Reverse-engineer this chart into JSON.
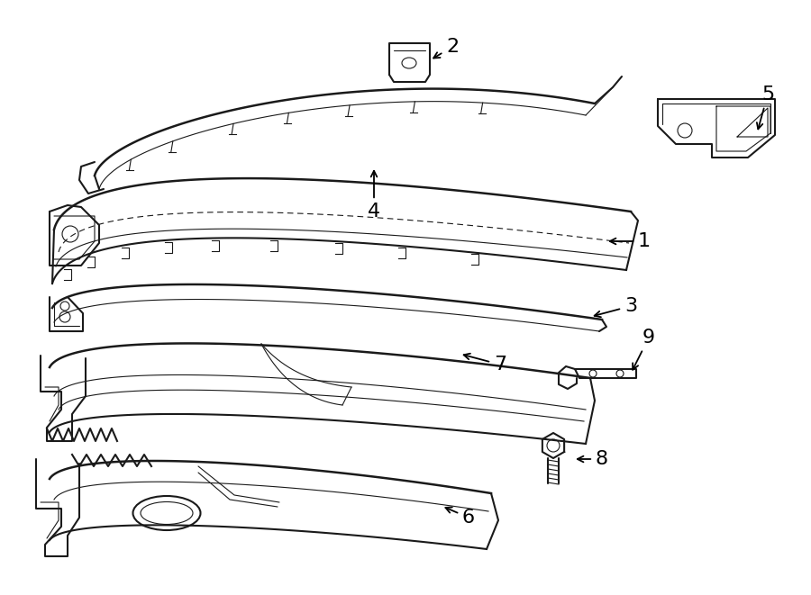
{
  "bg_color": "#ffffff",
  "line_color": "#1a1a1a",
  "fig_width": 9.0,
  "fig_height": 6.61,
  "dpi": 100,
  "lw_main": 1.5,
  "lw_thin": 0.8,
  "lw_thick": 2.0
}
